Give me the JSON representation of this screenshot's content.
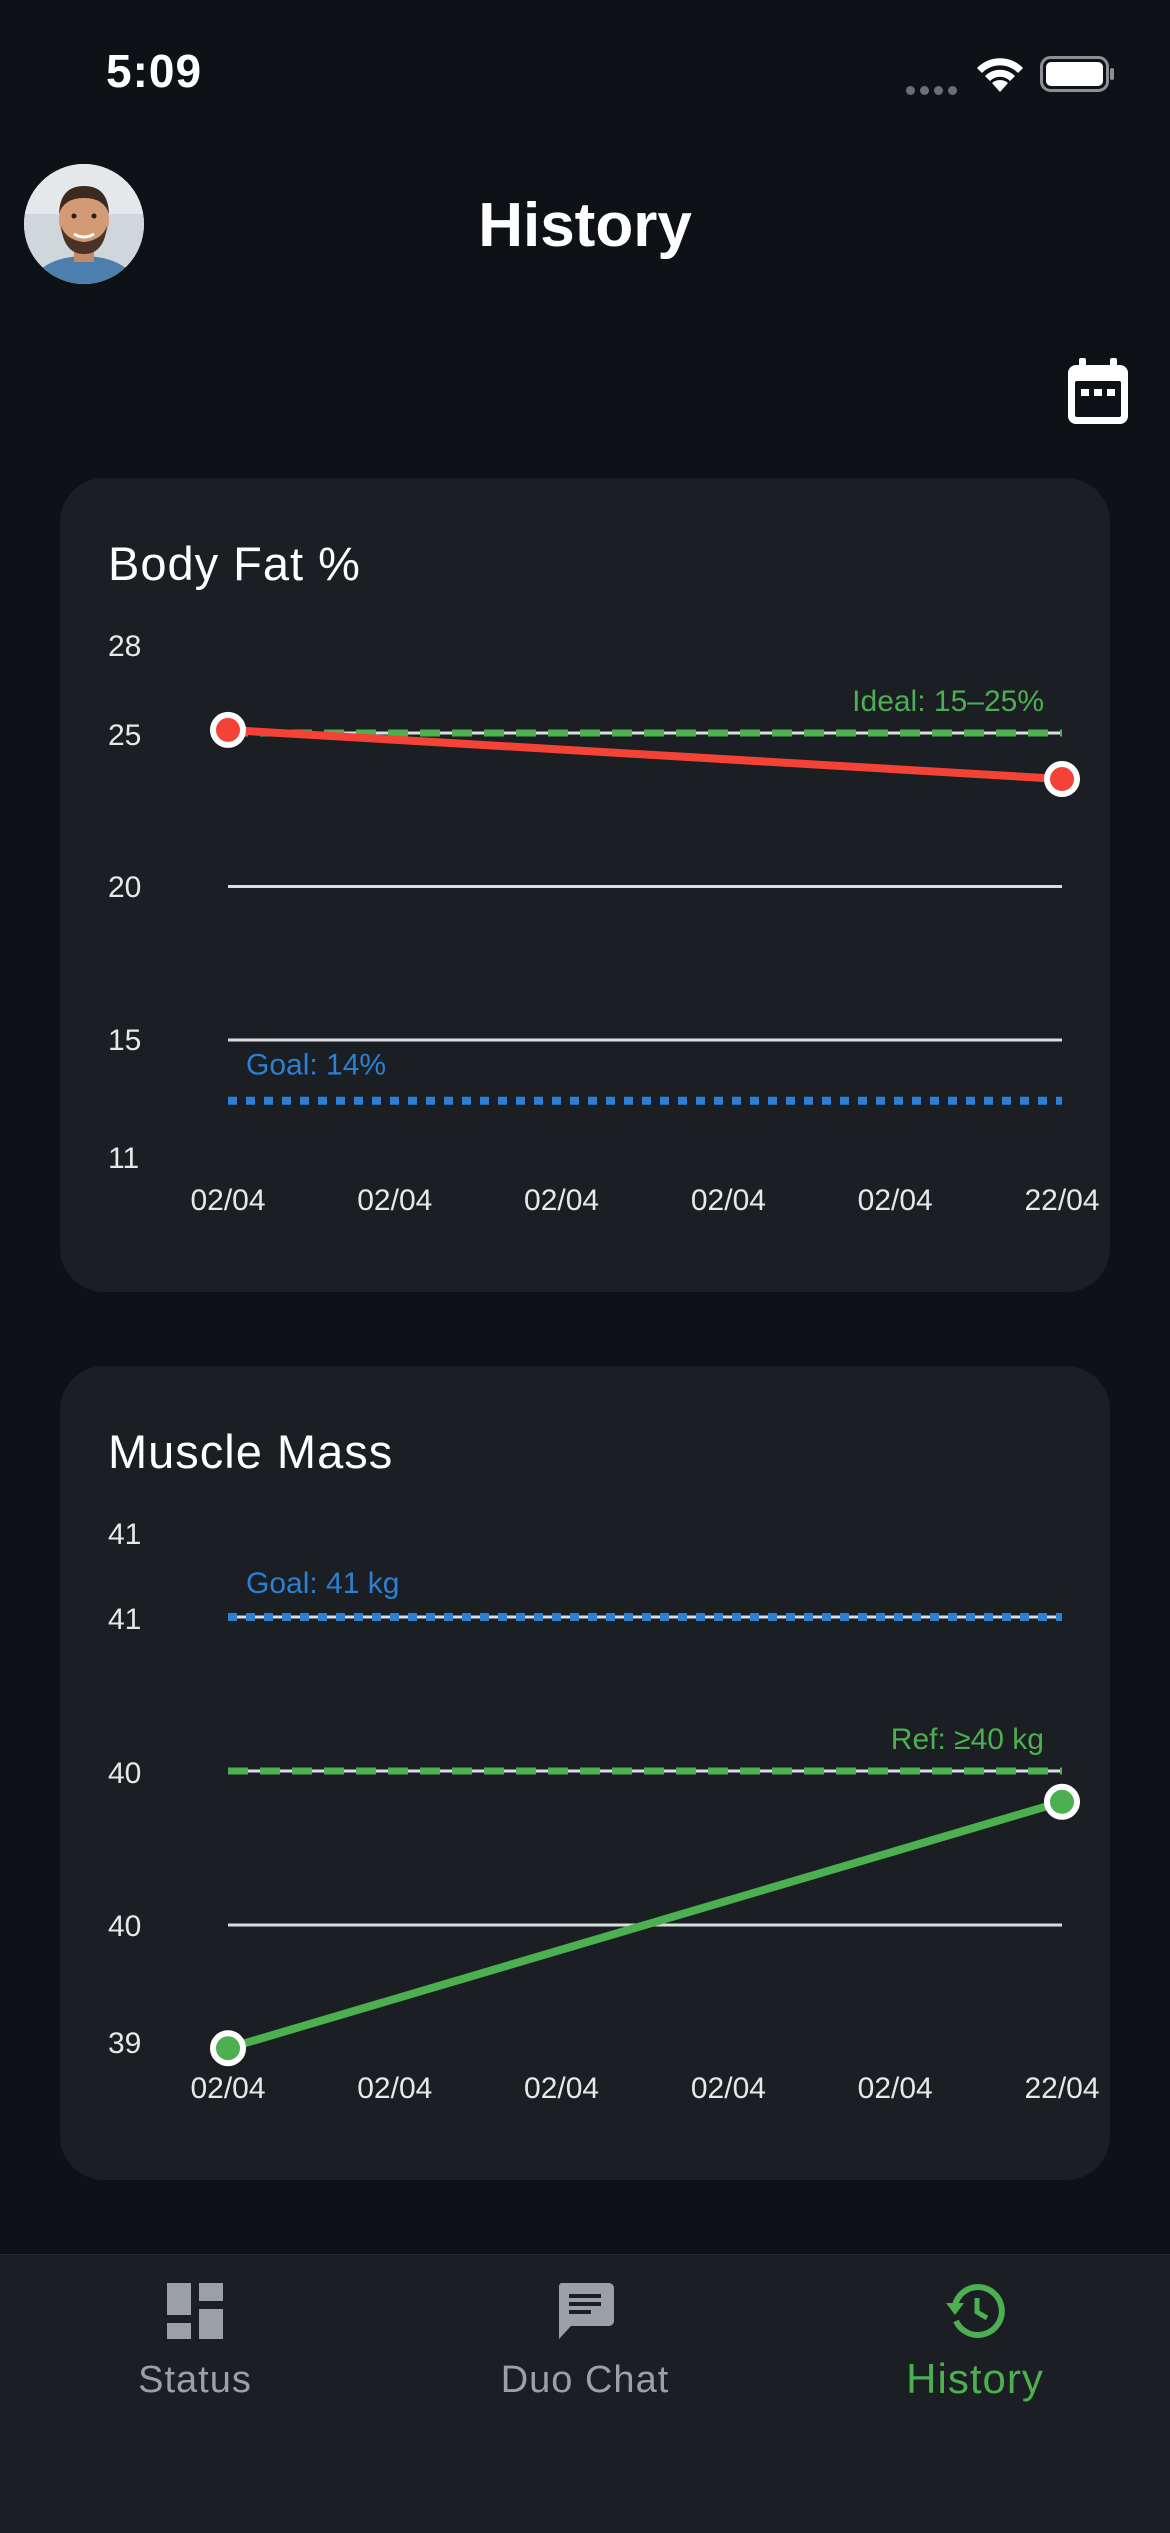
{
  "status_bar": {
    "time": "5:09"
  },
  "header": {
    "title": "History"
  },
  "colors": {
    "accent": "#4caf50",
    "danger": "#f44336",
    "goal": "#2d7fd4",
    "background": "#0e1216",
    "card": "#1b1f23"
  },
  "charts": [
    {
      "title": "Body Fat %",
      "y_tick_labels": [
        "28",
        "25",
        "20",
        "15",
        "11"
      ],
      "ideal_label": "Ideal: 15–25%",
      "goal_label": "Goal: 14%"
    },
    {
      "title": "Muscle Mass",
      "y_tick_labels": [
        "41",
        "41",
        "40",
        "40",
        "39"
      ],
      "ideal_label": "Ref: ≥40 kg",
      "goal_label": "Goal: 41 kg"
    }
  ],
  "chart_data": [
    {
      "type": "line",
      "title": "Body Fat %",
      "x_tick_labels": [
        "02/04",
        "02/04",
        "02/04",
        "02/04",
        "02/04",
        "22/04"
      ],
      "x": [
        "02/04",
        "22/04"
      ],
      "series": [
        {
          "values": [
            25.1,
            23.5
          ]
        }
      ],
      "reference_lines": [
        {
          "label": "Ideal: 15–25%",
          "value": 25,
          "style": "dashed",
          "color": "#4caf50"
        },
        {
          "label": "Goal: 14%",
          "value": 14,
          "style": "dotted",
          "color": "#2d7fd4"
        }
      ],
      "gridlines": [
        25,
        20,
        15
      ],
      "ylim": [
        11,
        28
      ],
      "series_color": "#f44336",
      "point_fill": "#f44336"
    },
    {
      "type": "line",
      "title": "Muscle Mass",
      "x_tick_labels": [
        "02/04",
        "02/04",
        "02/04",
        "02/04",
        "02/04",
        "22/04"
      ],
      "x": [
        "02/04",
        "22/04"
      ],
      "series": [
        {
          "values": [
            39.6,
            40.4
          ]
        }
      ],
      "reference_lines": [
        {
          "label": "Ref: ≥40 kg",
          "value": 40.5,
          "style": "dashed",
          "color": "#4caf50"
        },
        {
          "label": "Goal: 41 kg",
          "value": 41,
          "style": "dotted",
          "color": "#2d7fd4"
        }
      ],
      "gridlines": [
        41,
        40.5,
        40
      ],
      "ylim": [
        39.2,
        41.2
      ],
      "series_color": "#4caf50",
      "point_fill": "#4caf50"
    }
  ],
  "tabbar": {
    "tabs": [
      {
        "label": "Status",
        "icon": "dashboard-icon"
      },
      {
        "label": "Duo Chat",
        "icon": "chat-icon"
      },
      {
        "label": "History",
        "icon": "history-icon",
        "active": true
      }
    ]
  }
}
